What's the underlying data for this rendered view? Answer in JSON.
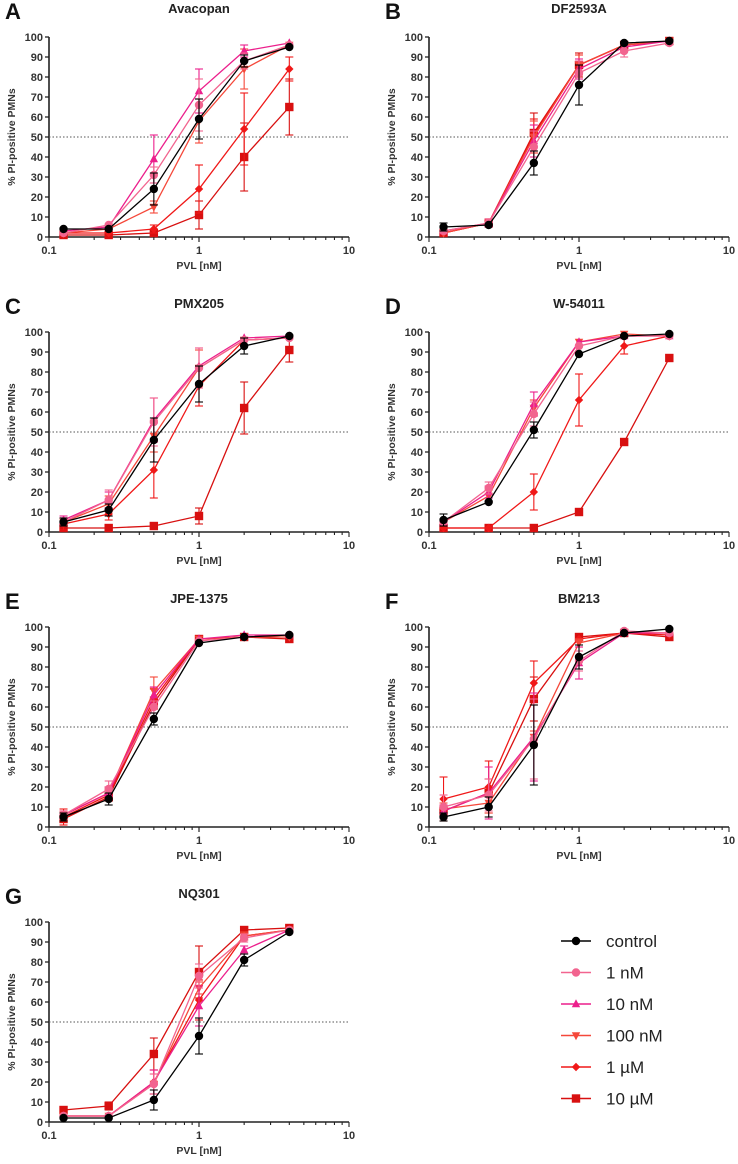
{
  "chart_data": [
    {
      "type": "line",
      "panel": "A",
      "title": "Avacopan",
      "xlabel": "PVL [nM]",
      "ylabel": "% PI-positive PMNs",
      "xscale": "log",
      "xlim": [
        0.1,
        10
      ],
      "ylim": [
        0,
        100
      ],
      "xticks": [
        "0.1",
        "1",
        "10"
      ],
      "yticks": [
        "0",
        "10",
        "20",
        "30",
        "40",
        "50",
        "60",
        "70",
        "80",
        "90",
        "100"
      ],
      "reference_line": 50,
      "x": [
        0.125,
        0.25,
        0.5,
        1,
        2,
        4
      ],
      "series": [
        {
          "name": "control",
          "values": [
            4,
            4,
            24,
            59,
            88,
            95
          ],
          "err": [
            1,
            1,
            8,
            10,
            3,
            1
          ]
        },
        {
          "name": "1 nM",
          "values": [
            2,
            6,
            31,
            66,
            88,
            96
          ],
          "err": [
            1,
            1,
            4,
            13,
            4,
            1
          ]
        },
        {
          "name": "10 nM",
          "values": [
            3,
            5,
            39,
            73,
            93,
            97
          ],
          "err": [
            1,
            1,
            12,
            11,
            3,
            1
          ]
        },
        {
          "name": "100 nM",
          "values": [
            2,
            4,
            15,
            58,
            84,
            96
          ],
          "err": [
            1,
            1,
            3,
            11,
            10,
            1
          ]
        },
        {
          "name": "1 µM",
          "values": [
            2,
            2,
            4,
            24,
            54,
            84
          ],
          "err": [
            1,
            1,
            2,
            12,
            18,
            6
          ]
        },
        {
          "name": "10 µM",
          "values": [
            1,
            1,
            2,
            11,
            40,
            65
          ],
          "err": [
            1,
            1,
            1,
            7,
            17,
            14
          ]
        }
      ]
    },
    {
      "type": "line",
      "panel": "B",
      "title": "DF2593A",
      "xlabel": "PVL [nM]",
      "ylabel": "% PI-positive PMNs",
      "xscale": "log",
      "xlim": [
        0.1,
        10
      ],
      "ylim": [
        0,
        100
      ],
      "xticks": [
        "0.1",
        "1",
        "10"
      ],
      "yticks": [
        "0",
        "10",
        "20",
        "30",
        "40",
        "50",
        "60",
        "70",
        "80",
        "90",
        "100"
      ],
      "reference_line": 50,
      "x": [
        0.125,
        0.25,
        0.5,
        1,
        2,
        4
      ],
      "series": [
        {
          "name": "control",
          "values": [
            5,
            6,
            37,
            76,
            97,
            98
          ],
          "err": [
            2,
            1,
            6,
            10,
            1,
            1
          ]
        },
        {
          "name": "1 nM",
          "values": [
            3,
            7,
            45,
            82,
            93,
            97
          ],
          "err": [
            1,
            2,
            8,
            6,
            3,
            1
          ]
        },
        {
          "name": "10 nM",
          "values": [
            3,
            7,
            48,
            84,
            95,
            98
          ],
          "err": [
            1,
            2,
            8,
            5,
            2,
            1
          ]
        },
        {
          "name": "100 nM",
          "values": [
            2,
            7,
            50,
            86,
            96,
            98
          ],
          "err": [
            1,
            2,
            8,
            5,
            1,
            1
          ]
        },
        {
          "name": "1 µM",
          "values": [
            2,
            7,
            51,
            86,
            96,
            98
          ],
          "err": [
            1,
            2,
            8,
            5,
            1,
            1
          ]
        },
        {
          "name": "10 µM",
          "values": [
            2,
            7,
            52,
            86,
            96,
            98
          ],
          "err": [
            1,
            2,
            10,
            6,
            1,
            1
          ]
        }
      ]
    },
    {
      "type": "line",
      "panel": "C",
      "title": "PMX205",
      "xlabel": "PVL [nM]",
      "ylabel": "% PI-positive PMNs",
      "xscale": "log",
      "xlim": [
        0.1,
        10
      ],
      "ylim": [
        0,
        100
      ],
      "xticks": [
        "0.1",
        "1",
        "10"
      ],
      "yticks": [
        "0",
        "10",
        "20",
        "30",
        "40",
        "50",
        "60",
        "70",
        "80",
        "90",
        "100"
      ],
      "reference_line": 50,
      "x": [
        0.125,
        0.25,
        0.5,
        1,
        2,
        4
      ],
      "series": [
        {
          "name": "control",
          "values": [
            5,
            11,
            46,
            74,
            93,
            98
          ],
          "err": [
            2,
            3,
            11,
            9,
            4,
            1
          ]
        },
        {
          "name": "1 nM",
          "values": [
            5,
            16,
            55,
            82,
            96,
            97
          ],
          "err": [
            2,
            5,
            12,
            10,
            1,
            1
          ]
        },
        {
          "name": "10 nM",
          "values": [
            6,
            16,
            56,
            83,
            97,
            98
          ],
          "err": [
            2,
            4,
            11,
            9,
            1,
            1
          ]
        },
        {
          "name": "100 nM",
          "values": [
            5,
            14,
            48,
            82,
            96,
            97
          ],
          "err": [
            2,
            4,
            8,
            9,
            1,
            1
          ]
        },
        {
          "name": "1 µM",
          "values": [
            4,
            9,
            31,
            73,
            96,
            97
          ],
          "err": [
            3,
            3,
            14,
            10,
            1,
            1
          ]
        },
        {
          "name": "10 µM",
          "values": [
            2,
            2,
            3,
            8,
            62,
            91
          ],
          "err": [
            1,
            1,
            1,
            4,
            13,
            6
          ]
        }
      ]
    },
    {
      "type": "line",
      "panel": "D",
      "title": "W-54011",
      "xlabel": "PVL [nM]",
      "ylabel": "% PI-positive PMNs",
      "xscale": "log",
      "xlim": [
        0.1,
        10
      ],
      "ylim": [
        0,
        100
      ],
      "xticks": [
        "0.1",
        "1",
        "10"
      ],
      "yticks": [
        "0",
        "10",
        "20",
        "30",
        "40",
        "50",
        "60",
        "70",
        "80",
        "90",
        "100"
      ],
      "reference_line": 50,
      "x": [
        0.125,
        0.25,
        0.5,
        1,
        2,
        4
      ],
      "series": [
        {
          "name": "control",
          "values": [
            6,
            15,
            51,
            89,
            98,
            99
          ],
          "err": [
            3,
            1,
            4,
            1,
            1,
            1
          ]
        },
        {
          "name": "1 nM",
          "values": [
            5,
            22,
            59,
            93,
            98,
            98
          ],
          "err": [
            1,
            3,
            6,
            1,
            1,
            1
          ]
        },
        {
          "name": "10 nM",
          "values": [
            5,
            20,
            64,
            95,
            98,
            98
          ],
          "err": [
            1,
            3,
            6,
            1,
            1,
            1
          ]
        },
        {
          "name": "100 nM",
          "values": [
            5,
            18,
            62,
            95,
            99,
            98
          ],
          "err": [
            1,
            3,
            4,
            1,
            1,
            1
          ]
        },
        {
          "name": "1 µM",
          "values": [
            2,
            2,
            20,
            66,
            93,
            98
          ],
          "err": [
            1,
            1,
            9,
            13,
            4,
            1
          ]
        },
        {
          "name": "10 µM",
          "values": [
            2,
            2,
            2,
            10,
            45,
            87
          ],
          "err": [
            1,
            1,
            1,
            1,
            1,
            1
          ]
        }
      ]
    },
    {
      "type": "line",
      "panel": "E",
      "title": "JPE-1375",
      "xlabel": "PVL [nM]",
      "ylabel": "% PI-positive PMNs",
      "xscale": "log",
      "xlim": [
        0.1,
        10
      ],
      "ylim": [
        0,
        100
      ],
      "xticks": [
        "0.1",
        "1",
        "10"
      ],
      "yticks": [
        "0",
        "10",
        "20",
        "30",
        "40",
        "50",
        "60",
        "70",
        "80",
        "90",
        "100"
      ],
      "reference_line": 50,
      "x": [
        0.125,
        0.25,
        0.5,
        1,
        2,
        4
      ],
      "series": [
        {
          "name": "control",
          "values": [
            5,
            14,
            54,
            92,
            95,
            96
          ],
          "err": [
            2,
            3,
            3,
            1,
            1,
            1
          ]
        },
        {
          "name": "1 nM",
          "values": [
            6,
            19,
            60,
            93,
            95,
            96
          ],
          "err": [
            2,
            4,
            3,
            1,
            1,
            1
          ]
        },
        {
          "name": "10 nM",
          "values": [
            6,
            17,
            66,
            94,
            96,
            96
          ],
          "err": [
            2,
            3,
            4,
            1,
            1,
            1
          ]
        },
        {
          "name": "100 nM",
          "values": [
            6,
            17,
            68,
            94,
            95,
            95
          ],
          "err": [
            2,
            3,
            7,
            1,
            1,
            1
          ]
        },
        {
          "name": "1 µM",
          "values": [
            5,
            16,
            64,
            94,
            95,
            96
          ],
          "err": [
            4,
            3,
            5,
            1,
            1,
            1
          ]
        },
        {
          "name": "10 µM",
          "values": [
            4,
            15,
            62,
            94,
            95,
            94
          ],
          "err": [
            1,
            2,
            3,
            1,
            1,
            1
          ]
        }
      ]
    },
    {
      "type": "line",
      "panel": "F",
      "title": "BM213",
      "xlabel": "PVL [nM]",
      "ylabel": "% PI-positive PMNs",
      "xscale": "log",
      "xlim": [
        0.1,
        10
      ],
      "ylim": [
        0,
        100
      ],
      "xticks": [
        "0.1",
        "1",
        "10"
      ],
      "yticks": [
        "0",
        "10",
        "20",
        "30",
        "40",
        "50",
        "60",
        "70",
        "80",
        "90",
        "100"
      ],
      "reference_line": 50,
      "x": [
        0.125,
        0.25,
        0.5,
        1,
        2,
        4
      ],
      "series": [
        {
          "name": "control",
          "values": [
            5,
            10,
            41,
            85,
            97,
            99
          ],
          "err": [
            2,
            5,
            20,
            6,
            1,
            1
          ]
        },
        {
          "name": "1 nM",
          "values": [
            10,
            16,
            44,
            83,
            98,
            97
          ],
          "err": [
            6,
            8,
            20,
            5,
            1,
            1
          ]
        },
        {
          "name": "10 nM",
          "values": [
            8,
            17,
            45,
            82,
            97,
            97
          ],
          "err": [
            3,
            13,
            22,
            8,
            1,
            1
          ]
        },
        {
          "name": "100 nM",
          "values": [
            9,
            12,
            45,
            92,
            97,
            97
          ],
          "err": [
            3,
            5,
            3,
            2,
            1,
            1
          ]
        },
        {
          "name": "1 µM",
          "values": [
            14,
            20,
            72,
            94,
            97,
            96
          ],
          "err": [
            11,
            13,
            11,
            1,
            1,
            1
          ]
        },
        {
          "name": "10 µM",
          "values": [
            8,
            17,
            64,
            95,
            97,
            95
          ],
          "err": [
            2,
            7,
            11,
            1,
            1,
            1
          ]
        }
      ]
    },
    {
      "type": "line",
      "panel": "G",
      "title": "NQ301",
      "xlabel": "PVL [nM]",
      "ylabel": "% PI-positive PMNs",
      "xscale": "log",
      "xlim": [
        0.1,
        10
      ],
      "ylim": [
        0,
        100
      ],
      "xticks": [
        "0.1",
        "1",
        "10"
      ],
      "yticks": [
        "0",
        "10",
        "20",
        "30",
        "40",
        "50",
        "60",
        "70",
        "80",
        "90",
        "100"
      ],
      "reference_line": 50,
      "x": [
        0.125,
        0.25,
        0.5,
        1,
        2,
        4
      ],
      "series": [
        {
          "name": "control",
          "values": [
            2,
            2,
            11,
            43,
            81,
            95
          ],
          "err": [
            1,
            1,
            5,
            9,
            3,
            1
          ]
        },
        {
          "name": "1 nM",
          "values": [
            3,
            3,
            19,
            73,
            92,
            96
          ],
          "err": [
            1,
            1,
            5,
            6,
            2,
            1
          ]
        },
        {
          "name": "10 nM",
          "values": [
            3,
            3,
            20,
            58,
            86,
            96
          ],
          "err": [
            1,
            1,
            6,
            10,
            2,
            1
          ]
        },
        {
          "name": "100 nM",
          "values": [
            3,
            3,
            19,
            67,
            93,
            96
          ],
          "err": [
            1,
            1,
            5,
            3,
            2,
            1
          ]
        },
        {
          "name": "1 µM",
          "values": [
            3,
            3,
            20,
            61,
            93,
            96
          ],
          "err": [
            1,
            1,
            6,
            10,
            2,
            1
          ]
        },
        {
          "name": "10 µM",
          "values": [
            6,
            8,
            34,
            75,
            96,
            97
          ],
          "err": [
            1,
            2,
            8,
            13,
            1,
            1
          ]
        }
      ]
    }
  ],
  "legend": {
    "placement": "bottom-right",
    "items": [
      {
        "label": "control",
        "color": "#000000",
        "marker": "circle"
      },
      {
        "label": "1 nM",
        "color": "#f2648f",
        "marker": "circle"
      },
      {
        "label": "10 nM",
        "color": "#ec1f8c",
        "marker": "triangle-up"
      },
      {
        "label": "100 nM",
        "color": "#f5483a",
        "marker": "triangle-down"
      },
      {
        "label": "1 µM",
        "color": "#f01818",
        "marker": "diamond"
      },
      {
        "label": "10 µM",
        "color": "#d81010",
        "marker": "square"
      }
    ]
  }
}
